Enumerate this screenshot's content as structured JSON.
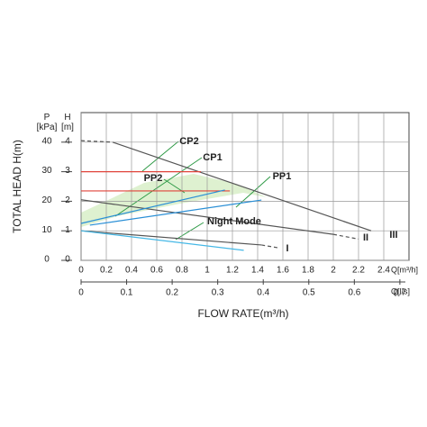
{
  "chart_data": {
    "type": "line",
    "y_label": "TOTAL HEAD H(m)",
    "x_label": "FLOW RATE(m³/h)",
    "y_unit_label": "H\n[m]",
    "y2_unit_label": "P\n[kPa]",
    "x_unit_label": "Q[m³/h]",
    "x2_unit_label": "Q[l/s]",
    "xlim": [
      0,
      2.6
    ],
    "xticks": [
      0,
      0.2,
      0.4,
      0.6,
      0.8,
      1.0,
      1.2,
      1.4,
      1.6,
      1.8,
      2.0,
      2.2,
      2.4
    ],
    "x2lim": [
      0,
      0.72
    ],
    "x2ticks": [
      0,
      0.1,
      0.2,
      0.3,
      0.4,
      0.5,
      0.6,
      0.7
    ],
    "ylim": [
      0,
      5
    ],
    "yticks": [
      0,
      1,
      2,
      3,
      4
    ],
    "y2lim": [
      0,
      50
    ],
    "y2ticks": [
      0,
      10,
      20,
      30,
      40
    ],
    "grid": true,
    "series": [
      {
        "name": "III",
        "color": "#555555",
        "dash": false,
        "x": [
          0.25,
          2.3
        ],
        "values": [
          4.0,
          1.0
        ]
      },
      {
        "color": "#555555",
        "dash": true,
        "x": [
          0,
          0.25
        ],
        "values": [
          4.05,
          4.0
        ]
      },
      {
        "name": "II",
        "color": "#555555",
        "dash": false,
        "x": [
          0,
          2.0
        ],
        "values": [
          2.05,
          0.88
        ]
      },
      {
        "color": "#555555",
        "dash": true,
        "x": [
          2.0,
          2.2
        ],
        "values": [
          0.88,
          0.72
        ]
      },
      {
        "name": "I",
        "color": "#555555",
        "dash": false,
        "x": [
          0,
          1.43
        ],
        "values": [
          1.0,
          0.52
        ]
      },
      {
        "color": "#555555",
        "dash": true,
        "x": [
          1.43,
          1.57
        ],
        "values": [
          0.52,
          0.42
        ]
      },
      {
        "name": "CP2",
        "color": "#e0443a",
        "dash": false,
        "x": [
          0,
          0.95
        ],
        "values": [
          3.0,
          3.0
        ]
      },
      {
        "name": "CP1",
        "color": "#e0443a",
        "dash": false,
        "x": [
          0,
          1.18
        ],
        "values": [
          2.35,
          2.35
        ]
      },
      {
        "name": "PP2",
        "color": "#2a8fd6",
        "dash": false,
        "x": [
          0,
          1.14
        ],
        "values": [
          1.25,
          2.38
        ]
      },
      {
        "name": "PP1",
        "color": "#2a8fd6",
        "dash": false,
        "x": [
          0.07,
          1.43
        ],
        "values": [
          1.19,
          2.04
        ]
      },
      {
        "name": "Night Mode",
        "color": "#45b8e6",
        "dash": false,
        "x": [
          0,
          1.29
        ],
        "values": [
          1.0,
          0.34
        ]
      }
    ]
  }
}
